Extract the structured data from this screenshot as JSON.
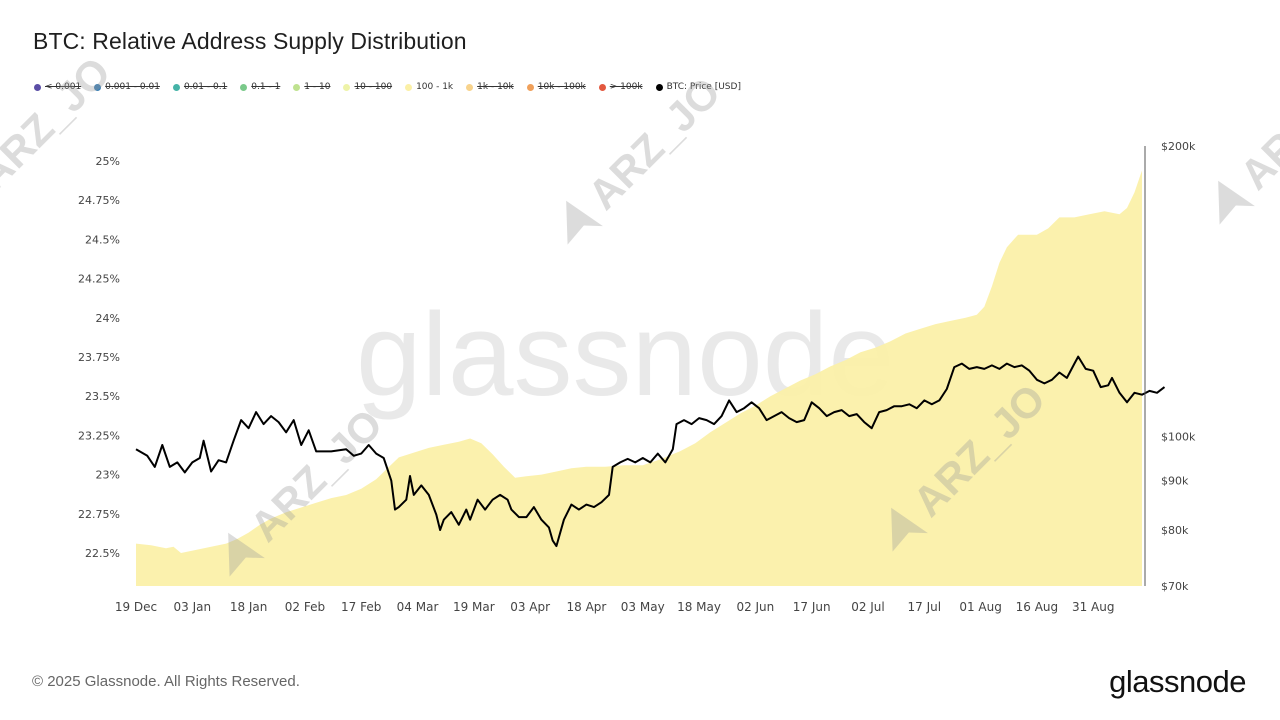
{
  "title": "BTC: Relative Address Supply Distribution",
  "legend": [
    {
      "label": "< 0.001",
      "color": "#5b4ea6",
      "active": false
    },
    {
      "label": "0.001 - 0.01",
      "color": "#3b7fb5",
      "active": false
    },
    {
      "label": "0.01 - 0.1",
      "color": "#45b3a7",
      "active": false
    },
    {
      "label": "0.1 - 1",
      "color": "#7ac98a",
      "active": false
    },
    {
      "label": "1 - 10",
      "color": "#bfe28f",
      "active": false
    },
    {
      "label": "10 - 100",
      "color": "#eef3a8",
      "active": false
    },
    {
      "label": "100 - 1k",
      "color": "#fbf0a6",
      "active": true
    },
    {
      "label": "1k - 10k",
      "color": "#f8d38c",
      "active": false
    },
    {
      "label": "10k - 100k",
      "color": "#f0a05a",
      "active": false
    },
    {
      "label": "> 100k",
      "color": "#e3583f",
      "active": false
    },
    {
      "label": "BTC: Price [USD]",
      "color": "#000000",
      "active": true
    }
  ],
  "watermarks": [
    "glassnode",
    "ARZ_JO"
  ],
  "footer": "© 2025 Glassnode. All Rights Reserved.",
  "brand": "glassnode",
  "chart_data": {
    "type": "area",
    "x_ticks": [
      "19 Dec",
      "03 Jan",
      "18 Jan",
      "02 Feb",
      "17 Feb",
      "04 Mar",
      "19 Mar",
      "03 Apr",
      "18 Apr",
      "03 May",
      "18 May",
      "02 Jun",
      "17 Jun",
      "02 Jul",
      "17 Jul",
      "01 Aug",
      "16 Aug",
      "31 Aug"
    ],
    "x_range_days": [
      0,
      268
    ],
    "left_axis": {
      "ticks": [
        "22.5%",
        "22.75%",
        "23%",
        "23.25%",
        "23.5%",
        "23.75%",
        "24%",
        "24.25%",
        "24.5%",
        "24.75%",
        "25%"
      ],
      "ylim": [
        22.5,
        25.0
      ]
    },
    "right_axis": {
      "scale": "log",
      "ticks": [
        "$70k",
        "$80k",
        "$90k",
        "$100k",
        "$200k"
      ],
      "tick_values": [
        70000,
        80000,
        90000,
        100000,
        200000
      ]
    },
    "series": [
      {
        "name": "100 - 1k",
        "color": "#fbf0a6",
        "axis": "left",
        "points": [
          [
            0,
            22.56
          ],
          [
            4,
            22.55
          ],
          [
            8,
            22.53
          ],
          [
            10,
            22.54
          ],
          [
            12,
            22.5
          ],
          [
            16,
            22.52
          ],
          [
            20,
            22.54
          ],
          [
            24,
            22.56
          ],
          [
            27,
            22.59
          ],
          [
            30,
            22.63
          ],
          [
            33,
            22.68
          ],
          [
            36,
            22.72
          ],
          [
            40,
            22.76
          ],
          [
            44,
            22.79
          ],
          [
            48,
            22.82
          ],
          [
            52,
            22.85
          ],
          [
            56,
            22.87
          ],
          [
            60,
            22.91
          ],
          [
            64,
            22.97
          ],
          [
            67,
            23.04
          ],
          [
            70,
            23.11
          ],
          [
            74,
            23.14
          ],
          [
            78,
            23.17
          ],
          [
            82,
            23.19
          ],
          [
            86,
            23.21
          ],
          [
            89,
            23.23
          ],
          [
            92,
            23.2
          ],
          [
            95,
            23.13
          ],
          [
            98,
            23.05
          ],
          [
            101,
            22.98
          ],
          [
            104,
            22.99
          ],
          [
            108,
            23.0
          ],
          [
            112,
            23.02
          ],
          [
            116,
            23.04
          ],
          [
            120,
            23.05
          ],
          [
            125,
            23.05
          ],
          [
            130,
            23.06
          ],
          [
            135,
            23.06
          ],
          [
            140,
            23.1
          ],
          [
            145,
            23.15
          ],
          [
            149,
            23.2
          ],
          [
            153,
            23.27
          ],
          [
            157,
            23.33
          ],
          [
            161,
            23.39
          ],
          [
            165,
            23.44
          ],
          [
            169,
            23.5
          ],
          [
            173,
            23.55
          ],
          [
            177,
            23.6
          ],
          [
            181,
            23.64
          ],
          [
            185,
            23.69
          ],
          [
            189,
            23.73
          ],
          [
            193,
            23.78
          ],
          [
            197,
            23.81
          ],
          [
            201,
            23.85
          ],
          [
            205,
            23.9
          ],
          [
            209,
            23.93
          ],
          [
            213,
            23.96
          ],
          [
            217,
            23.98
          ],
          [
            221,
            24.0
          ],
          [
            224,
            24.02
          ],
          [
            226,
            24.07
          ],
          [
            228,
            24.2
          ],
          [
            230,
            24.35
          ],
          [
            232,
            24.45
          ],
          [
            235,
            24.53
          ],
          [
            240,
            24.53
          ],
          [
            243,
            24.57
          ],
          [
            246,
            24.64
          ],
          [
            250,
            24.64
          ],
          [
            254,
            24.66
          ],
          [
            258,
            24.68
          ],
          [
            262,
            24.66
          ],
          [
            264,
            24.7
          ],
          [
            266,
            24.8
          ],
          [
            268,
            24.94
          ]
        ]
      },
      {
        "name": "BTC: Price [USD]",
        "color": "#000000",
        "axis": "right",
        "points": [
          [
            0,
            97000
          ],
          [
            3,
            95500
          ],
          [
            5,
            93000
          ],
          [
            7,
            98000
          ],
          [
            9,
            93000
          ],
          [
            11,
            94000
          ],
          [
            13,
            91800
          ],
          [
            15,
            94000
          ],
          [
            17,
            95000
          ],
          [
            18,
            99000
          ],
          [
            20,
            92000
          ],
          [
            22,
            94500
          ],
          [
            24,
            94000
          ],
          [
            26,
            99000
          ],
          [
            28,
            104000
          ],
          [
            30,
            102000
          ],
          [
            32,
            106000
          ],
          [
            34,
            103000
          ],
          [
            36,
            105000
          ],
          [
            38,
            103500
          ],
          [
            40,
            101000
          ],
          [
            42,
            104000
          ],
          [
            44,
            98000
          ],
          [
            46,
            101500
          ],
          [
            48,
            96500
          ],
          [
            52,
            96500
          ],
          [
            56,
            97000
          ],
          [
            58,
            95500
          ],
          [
            60,
            96000
          ],
          [
            62,
            98000
          ],
          [
            64,
            96000
          ],
          [
            66,
            95000
          ],
          [
            68,
            90000
          ],
          [
            69,
            84000
          ],
          [
            70,
            84500
          ],
          [
            72,
            86000
          ],
          [
            73,
            91000
          ],
          [
            74,
            87000
          ],
          [
            76,
            89000
          ],
          [
            78,
            87000
          ],
          [
            80,
            83000
          ],
          [
            81,
            80000
          ],
          [
            82,
            82000
          ],
          [
            84,
            83500
          ],
          [
            86,
            81000
          ],
          [
            88,
            84000
          ],
          [
            89,
            82000
          ],
          [
            91,
            86000
          ],
          [
            93,
            84000
          ],
          [
            95,
            86000
          ],
          [
            97,
            87000
          ],
          [
            99,
            86000
          ],
          [
            100,
            84000
          ],
          [
            102,
            82500
          ],
          [
            104,
            82500
          ],
          [
            106,
            84500
          ],
          [
            108,
            82000
          ],
          [
            110,
            80500
          ],
          [
            111,
            78000
          ],
          [
            112,
            77000
          ],
          [
            114,
            82000
          ],
          [
            116,
            85000
          ],
          [
            118,
            84000
          ],
          [
            120,
            85000
          ],
          [
            122,
            84500
          ],
          [
            124,
            85500
          ],
          [
            126,
            87000
          ],
          [
            127,
            93000
          ],
          [
            129,
            94000
          ],
          [
            131,
            94800
          ],
          [
            133,
            94000
          ],
          [
            135,
            95000
          ],
          [
            137,
            94000
          ],
          [
            139,
            96000
          ],
          [
            141,
            94000
          ],
          [
            143,
            97000
          ],
          [
            144,
            103000
          ],
          [
            146,
            104000
          ],
          [
            148,
            103000
          ],
          [
            150,
            104500
          ],
          [
            152,
            104000
          ],
          [
            154,
            103000
          ],
          [
            156,
            105000
          ],
          [
            158,
            109000
          ],
          [
            160,
            106000
          ],
          [
            162,
            107000
          ],
          [
            164,
            108500
          ],
          [
            166,
            107000
          ],
          [
            168,
            104000
          ],
          [
            170,
            105000
          ],
          [
            172,
            106000
          ],
          [
            174,
            104500
          ],
          [
            176,
            103500
          ],
          [
            178,
            104000
          ],
          [
            180,
            108500
          ],
          [
            182,
            107000
          ],
          [
            184,
            105000
          ],
          [
            186,
            106000
          ],
          [
            188,
            106500
          ],
          [
            190,
            105000
          ],
          [
            192,
            105500
          ],
          [
            194,
            103500
          ],
          [
            196,
            102000
          ],
          [
            198,
            106000
          ],
          [
            200,
            106500
          ],
          [
            202,
            107500
          ],
          [
            204,
            107500
          ],
          [
            206,
            108000
          ],
          [
            208,
            107000
          ],
          [
            210,
            109000
          ],
          [
            212,
            108000
          ],
          [
            214,
            109000
          ],
          [
            216,
            112000
          ],
          [
            218,
            118000
          ],
          [
            220,
            119000
          ],
          [
            222,
            117500
          ],
          [
            224,
            118000
          ],
          [
            226,
            117500
          ],
          [
            228,
            118500
          ],
          [
            230,
            117500
          ],
          [
            232,
            119000
          ],
          [
            234,
            118000
          ],
          [
            236,
            118500
          ],
          [
            238,
            117000
          ],
          [
            240,
            114500
          ],
          [
            242,
            113500
          ],
          [
            244,
            114500
          ],
          [
            246,
            116500
          ],
          [
            248,
            115000
          ],
          [
            250,
            119000
          ],
          [
            251,
            121000
          ],
          [
            253,
            117500
          ],
          [
            255,
            117000
          ],
          [
            257,
            112500
          ],
          [
            259,
            113000
          ],
          [
            260,
            115000
          ],
          [
            262,
            111000
          ],
          [
            264,
            108500
          ],
          [
            266,
            111000
          ],
          [
            268,
            110500
          ],
          [
            270,
            111500
          ],
          [
            272,
            111000
          ],
          [
            274,
            112500
          ]
        ]
      }
    ],
    "grid": false,
    "legend_position": "top-left"
  }
}
